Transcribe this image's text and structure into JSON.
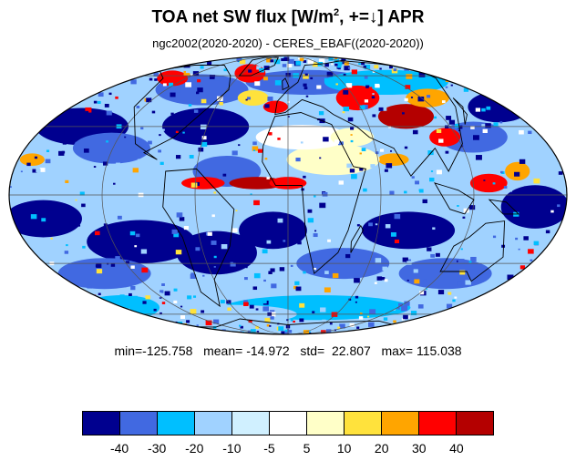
{
  "header": {
    "title_prefix": "TOA net SW flux [W/m",
    "title_sup": "2",
    "title_suffix": ", +=↓]  APR",
    "subtitle": "ngc2002(2020-2020) - CERES_EBAF((2020-2020))"
  },
  "stats": {
    "text": "min=-125.758   mean= -14.972   std=  22.807   max= 115.038",
    "min": -125.758,
    "mean": -14.972,
    "std": 22.807,
    "max": 115.038
  },
  "colorbar": {
    "colors": [
      "#00008f",
      "#4169e1",
      "#00bfff",
      "#a0d2ff",
      "#d0f0ff",
      "#ffffff",
      "#ffffc8",
      "#ffe23c",
      "#ffa500",
      "#ff0000",
      "#b40000"
    ],
    "labels": [
      "-40",
      "-30",
      "-20",
      "-10",
      "-5",
      "5",
      "10",
      "20",
      "30",
      "40"
    ]
  },
  "map": {
    "projection": "mollweide",
    "variable": "TOA net SW flux difference",
    "grid": true,
    "coastlines": true
  }
}
